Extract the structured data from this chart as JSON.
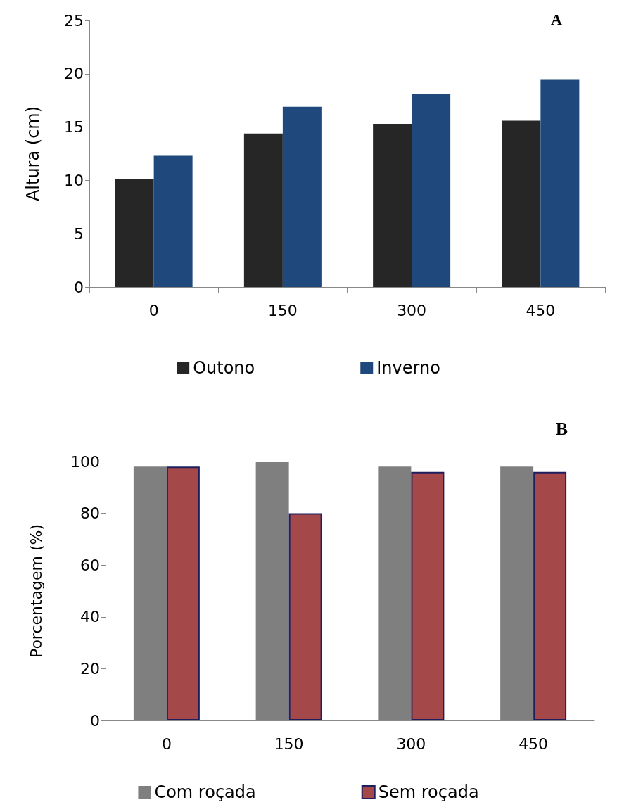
{
  "chart_data": [
    {
      "type": "bar",
      "ylabel": "Altura (cm)",
      "categories": [
        "0",
        "150",
        "300",
        "450"
      ],
      "series": [
        {
          "name": "Outono",
          "color": "#262626",
          "values": [
            10.1,
            14.4,
            15.3,
            15.6
          ]
        },
        {
          "name": "Inverno",
          "color": "#1f497d",
          "values": [
            12.3,
            16.9,
            18.1,
            19.5
          ]
        }
      ],
      "ylim": [
        0,
        25
      ],
      "yticks": [
        0,
        5,
        10,
        15,
        20,
        25
      ],
      "grid": false,
      "legend": "bottom",
      "annotations": [
        "A"
      ]
    },
    {
      "type": "bar",
      "ylabel": "Porcentagem (%)",
      "categories": [
        "0",
        "150",
        "300",
        "450"
      ],
      "series": [
        {
          "name": "Com roçada",
          "color": "#7f7f7f",
          "values": [
            98,
            100,
            98,
            98
          ]
        },
        {
          "name": "Sem roçada",
          "color": "#a5484a",
          "values": [
            98,
            80,
            96,
            96
          ]
        }
      ],
      "ylim": [
        0,
        100
      ],
      "yticks": [
        0,
        20,
        40,
        60,
        80,
        100
      ],
      "grid": false,
      "legend": "bottom",
      "annotations": [
        "B"
      ]
    }
  ]
}
